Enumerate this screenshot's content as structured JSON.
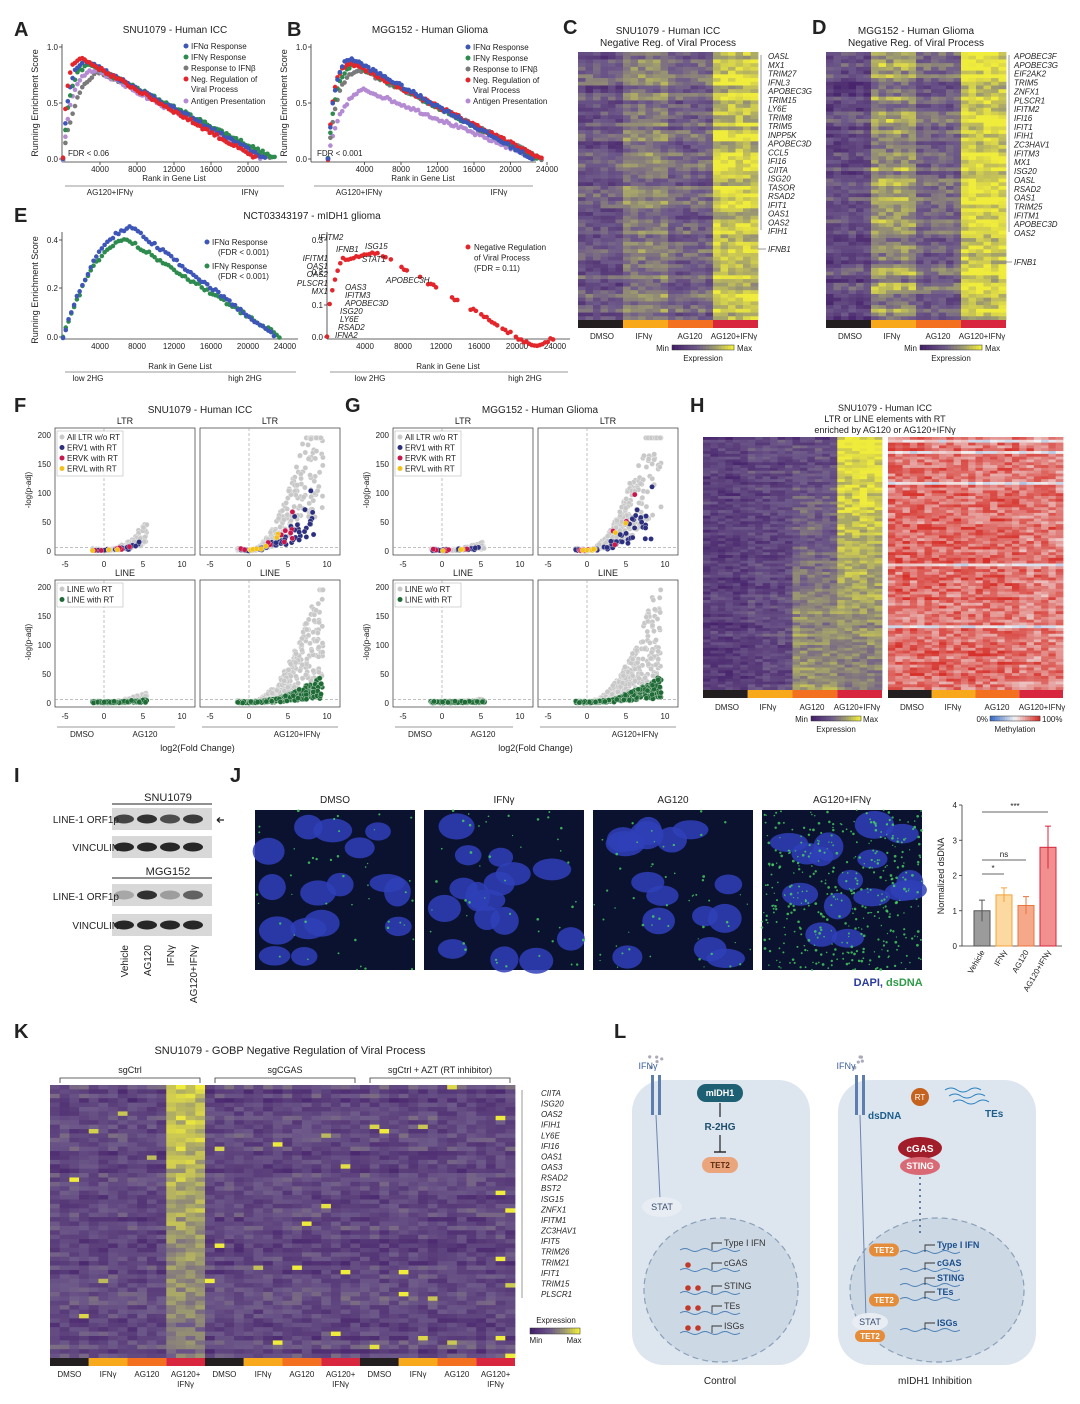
{
  "A": {
    "letter": "A",
    "title": "SNU1079 - Human ICC",
    "ylabel": "Running Enrichment Score",
    "yticks": [
      "1.0",
      "0.5",
      "0.0"
    ],
    "xticks": [
      "4000",
      "8000",
      "12000",
      "16000",
      "20000"
    ],
    "xlabel": "Rank in Gene List",
    "left": "AG120+IFNγ",
    "right": "IFNγ",
    "note": "FDR < 0.06",
    "legend": [
      [
        "IFNα Response"
      ],
      [
        "IFNγ Response"
      ],
      [
        "Response to IFNβ"
      ],
      [
        "Neg. Regulation of",
        "Viral Process"
      ],
      [
        "Antigen Presentation"
      ]
    ],
    "colors": [
      "#3d56b8",
      "#2e8b4e",
      "#7a7a7a",
      "#e3262b",
      "#b48ad2"
    ]
  },
  "B": {
    "letter": "B",
    "title": "MGG152 - Human Glioma",
    "ylabel": "Running Enrichment Score",
    "yticks": [
      "1.0",
      "0.5",
      "0.0"
    ],
    "xticks": [
      "4000",
      "8000",
      "12000",
      "16000",
      "20000",
      "24000"
    ],
    "xlabel": "Rank in Gene List",
    "left": "AG120+IFNγ",
    "right": "IFNγ",
    "note": "FDR < 0.001",
    "legend": [
      [
        "IFNα Response"
      ],
      [
        "IFNγ Response"
      ],
      [
        "Response to IFNβ"
      ],
      [
        "Neg. Regulation of",
        "Viral Process"
      ],
      [
        "Antigen Presentation"
      ]
    ],
    "colors": [
      "#3d56b8",
      "#2e8b4e",
      "#7a7a7a",
      "#e3262b",
      "#b48ad2"
    ]
  },
  "C": {
    "letter": "C",
    "title": [
      "SNU1079 - Human ICC",
      "Negative Reg. of Viral Process"
    ],
    "genes": [
      "OASL",
      "MX1",
      "TRIM27",
      "IFNL3",
      "APOBEC3G",
      "TRIM15",
      "LY6E",
      "TRIM8",
      "TRIM5",
      "INPP5K",
      "APOBEC3D",
      "CCL5",
      "IFI16",
      "CIITA",
      "ISG20",
      "TASOR",
      "RSAD2",
      "IFIT1",
      "OAS1",
      "OAS2",
      "IFIH1"
    ],
    "extra_gene": "IFNB1",
    "columns": [
      "DMSO",
      "IFNγ",
      "AG120",
      "AG120+IFNγ"
    ],
    "scale": [
      "Min",
      "Max",
      "Expression"
    ]
  },
  "D": {
    "letter": "D",
    "title": [
      "MGG152 - Human Glioma",
      "Negative Reg. of Viral Process"
    ],
    "genes": [
      "APOBEC3F",
      "APOBEC3G",
      "EIF2AK2",
      "TRIM5",
      "ZNFX1",
      "PLSCR1",
      "IFITM2",
      "IFI16",
      "IFIT1",
      "IFIH1",
      "ZC3HAV1",
      "IFITM3",
      "MX1",
      "ISG20",
      "OASL",
      "RSAD2",
      "OAS1",
      "TRIM25",
      "IFITM1",
      "APOBEC3D",
      "OAS2"
    ],
    "extra_gene": "IFNB1",
    "columns": [
      "DMSO",
      "IFNγ",
      "AG120",
      "AG120+IFNγ"
    ],
    "scale": [
      "Min",
      "Max",
      "Expression"
    ]
  },
  "E": {
    "letter": "E",
    "title": "NCT03343197 - mIDH1 glioma",
    "ylabel": "Running Enrichment Score",
    "xlabel": "Rank in Gene List",
    "low": "low 2HG",
    "high": "high 2HG",
    "left": {
      "yticks": [
        "0.4",
        "0.2",
        "0.0"
      ],
      "xticks": [
        "4000",
        "8000",
        "12000",
        "16000",
        "20000",
        "24000"
      ],
      "legend": [
        [
          "IFNα Response",
          "(FDR < 0.001)"
        ],
        [
          "IFNγ Response",
          "(FDR < 0.001)"
        ]
      ],
      "colors": [
        "#3d56b8",
        "#2e8b4e"
      ]
    },
    "right": {
      "yticks": [
        "0.3",
        "0.2",
        "0.1",
        "0.0"
      ],
      "xticks": [
        "4000",
        "8000",
        "12000",
        "16000",
        "20000",
        "24000"
      ],
      "genes": [
        "IFITM2",
        "IFNB1",
        "ISG15",
        "STAT1",
        "IFITM1",
        "OAS1",
        "OAS2",
        "PLSCR1",
        "MX1",
        "APOBEC3H",
        "OAS3",
        "IFITM3",
        "APOBEC3D",
        "ISG20",
        "LY6E",
        "RSAD2",
        "IFNA2"
      ],
      "legend": [
        "Negative Regulation",
        "of Viral Process",
        "(FDR = 0.11)"
      ],
      "color": "#e3262b"
    }
  },
  "F": {
    "letter": "F",
    "title": "SNU1079 - Human ICC",
    "sub": [
      "LTR",
      "LINE"
    ],
    "yticks": [
      "200",
      "150",
      "100",
      "50",
      "0"
    ],
    "xticks": [
      "-5",
      "0",
      "5",
      "10"
    ],
    "ylabel": "-log(p-adj)",
    "legend_ltr": [
      "All LTR w/o RT",
      "ERV1 with RT",
      "ERVK with RT",
      "ERVL with RT"
    ],
    "ltr_colors": [
      "#c8c8c8",
      "#2b2f7e",
      "#c8174d",
      "#f2c21b"
    ],
    "legend_line": [
      "LINE w/o RT",
      "LINE with RT"
    ],
    "line_colors": [
      "#c8c8c8",
      "#1e6b35"
    ],
    "groups": [
      "DMSO",
      "AG120",
      "AG120+IFNγ"
    ],
    "xlabel": "log2(Fold Change)"
  },
  "G": {
    "letter": "G",
    "title": "MGG152 - Human Glioma",
    "sub": [
      "LTR",
      "LINE"
    ],
    "yticks": [
      "200",
      "150",
      "100",
      "50",
      "0"
    ],
    "xticks": [
      "-5",
      "0",
      "5",
      "10"
    ],
    "ylabel": "-log(p-adj)",
    "legend_ltr": [
      "All LTR w/o RT",
      "ERV1 with RT",
      "ERVK with RT",
      "ERVL with RT"
    ],
    "ltr_colors": [
      "#c8c8c8",
      "#2b2f7e",
      "#c8174d",
      "#f2c21b"
    ],
    "legend_line": [
      "LINE w/o RT",
      "LINE with RT"
    ],
    "line_colors": [
      "#c8c8c8",
      "#1e6b35"
    ],
    "groups": [
      "DMSO",
      "AG120",
      "AG120+IFNγ"
    ],
    "xlabel": "log2(Fold Change)"
  },
  "H": {
    "letter": "H",
    "title": [
      "SNU1079 - Human ICC",
      "LTR or LINE elements with RT",
      "enriched by AG120 or AG120+IFNγ"
    ],
    "columns": [
      "DMSO",
      "IFNγ",
      "AG120",
      "AG120+IFNγ"
    ],
    "expression": [
      "Min",
      "Max",
      "Expression"
    ],
    "methylation": [
      "0%",
      "100%",
      "Methylation"
    ]
  },
  "I": {
    "letter": "I",
    "blots": [
      {
        "cell": "SNU1079",
        "rows": [
          "LINE-1 ORF1p",
          "VINCULIN"
        ]
      },
      {
        "cell": "MGG152",
        "rows": [
          "LINE-1 ORF1p",
          "VINCULIN"
        ]
      }
    ],
    "lanes": [
      "Vehicle",
      "AG120",
      "IFNγ",
      "AG120+IFNγ"
    ]
  },
  "J": {
    "letter": "J",
    "images": [
      "DMSO",
      "IFNγ",
      "AG120",
      "AG120+IFNγ"
    ],
    "stain_a": "DAPI,",
    "stain_b": "dsDNA",
    "chart_data": {
      "type": "bar",
      "ylabel": "Normalized dsDNA",
      "categories": [
        "Vehicle",
        "IFNγ",
        "AG120",
        "AG120+IFNγ"
      ],
      "values": [
        1.0,
        1.45,
        1.15,
        2.8
      ],
      "errors": [
        0.3,
        0.2,
        0.25,
        0.6
      ],
      "colors": [
        "#9b9b9b",
        "#fcd9a0",
        "#f6a98a",
        "#f28f8f"
      ],
      "edge_colors": [
        "#555555",
        "#f3a43c",
        "#e8743b",
        "#d7263d"
      ],
      "ylim": [
        0,
        4
      ],
      "yticks": [
        0,
        1,
        2,
        3,
        4
      ],
      "significance": [
        "*",
        "ns",
        "***"
      ]
    }
  },
  "K": {
    "letter": "K",
    "title": "SNU1079 - GOBP Negative Regulation of Viral Process",
    "groups": [
      "sgCtrl",
      "sgCGAS",
      "sgCtrl + AZT (RT inhibitor)"
    ],
    "genes": [
      "CIITA",
      "ISG20",
      "OAS2",
      "IFIH1",
      "LY6E",
      "IFI16",
      "OAS1",
      "OAS3",
      "RSAD2",
      "BST2",
      "ISG15",
      "ZNFX1",
      "IFITM1",
      "ZC3HAV1",
      "IFIT5",
      "TRIM26",
      "TRIM21",
      "IFIT1",
      "TRIM15",
      "PLSCR1"
    ],
    "columns": [
      "DMSO",
      "IFNγ",
      "AG120",
      [
        "AG120+",
        "IFNγ"
      ]
    ],
    "legend": [
      "Expression",
      "Min",
      "Max"
    ]
  },
  "L": {
    "letter": "L",
    "control": {
      "ifng": "IFNγ",
      "enzyme": "mIDH1",
      "metabolite": "R-2HG",
      "tet": "TET2",
      "stat": "STAT",
      "genes": [
        "Type I IFN",
        "cGAS",
        "STING",
        "TEs",
        "ISGs"
      ],
      "label": "Control"
    },
    "inhibition": {
      "ifng": "IFNγ",
      "rt": "RT",
      "tes": "TEs",
      "dsdna": "dsDNA",
      "cgas": "cGAS",
      "sting": "STING",
      "tet": "TET2",
      "stat": "STAT",
      "genes": [
        "Type I IFN",
        "cGAS",
        "STING",
        "TEs",
        "ISGs"
      ],
      "label": "mIDH1 Inhibition"
    }
  }
}
